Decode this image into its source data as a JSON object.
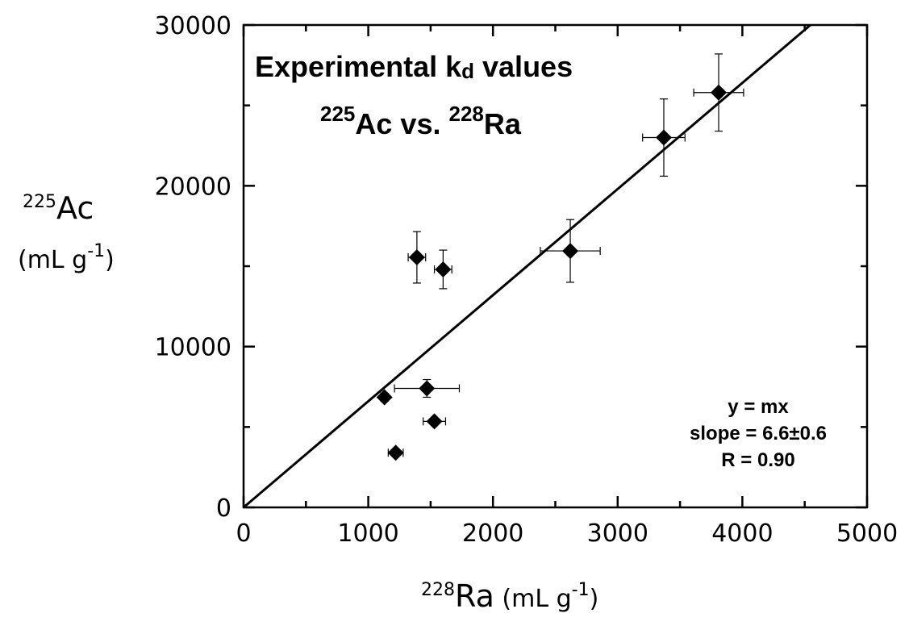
{
  "chart_data": {
    "type": "scatter",
    "title_main": "Experimental k",
    "title_sub": "d",
    "title_tail": " values",
    "subtitle": {
      "a_mass": "225",
      "a_sym": "Ac",
      "vs": " vs. ",
      "b_mass": "228",
      "b_sym": "Ra"
    },
    "xlabel": {
      "mass": "228",
      "sym": "Ra",
      "unit_pre": " (mL g",
      "unit_exp": "-1",
      "unit_post": ")"
    },
    "ylabel": {
      "mass": "225",
      "sym": "Ac",
      "unit_pre": "(mL g",
      "unit_exp": "-1",
      "unit_post": ")"
    },
    "xlim": [
      0,
      5000
    ],
    "ylim": [
      0,
      30000
    ],
    "xticks": [
      0,
      1000,
      2000,
      3000,
      4000,
      5000
    ],
    "yticks": [
      0,
      10000,
      20000,
      30000
    ],
    "x_tick_labels": [
      "0",
      "1000",
      "2000",
      "3000",
      "4000",
      "5000"
    ],
    "y_tick_labels": [
      "0",
      "10000",
      "20000",
      "30000"
    ],
    "grid": false,
    "marker": "diamond",
    "points": [
      {
        "x": 1130,
        "y": 6850,
        "xerr": 30,
        "yerr": 250
      },
      {
        "x": 1220,
        "y": 3400,
        "xerr": 60,
        "yerr": 200
      },
      {
        "x": 1390,
        "y": 15550,
        "xerr": 70,
        "yerr": 1600
      },
      {
        "x": 1470,
        "y": 7400,
        "xerr": 260,
        "yerr": 550
      },
      {
        "x": 1530,
        "y": 5350,
        "xerr": 90,
        "yerr": 200
      },
      {
        "x": 1600,
        "y": 14800,
        "xerr": 70,
        "yerr": 1200
      },
      {
        "x": 2620,
        "y": 15950,
        "xerr": 240,
        "yerr": 1950
      },
      {
        "x": 3370,
        "y": 23000,
        "xerr": 170,
        "yerr": 2400
      },
      {
        "x": 3810,
        "y": 25800,
        "xerr": 200,
        "yerr": 2400
      }
    ],
    "fit": {
      "slope": 6.6,
      "intercept": 0
    },
    "annotation": [
      "y = mx",
      "slope = 6.6±0.6",
      "R = 0.90"
    ]
  }
}
